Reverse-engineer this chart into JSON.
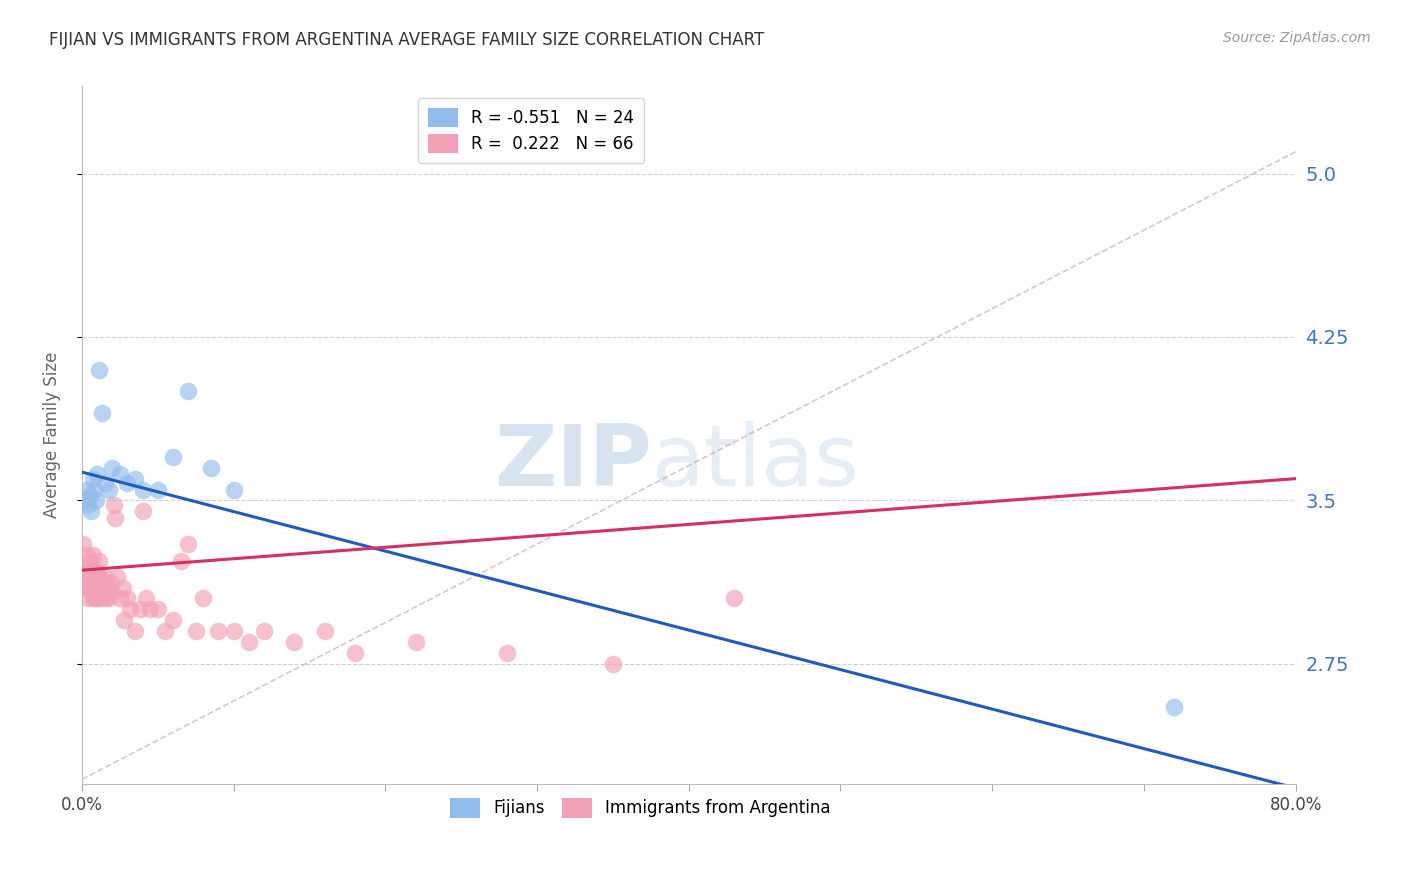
{
  "title": "FIJIAN VS IMMIGRANTS FROM ARGENTINA AVERAGE FAMILY SIZE CORRELATION CHART",
  "source": "Source: ZipAtlas.com",
  "ylabel": "Average Family Size",
  "xlim": [
    0.0,
    0.8
  ],
  "ylim": [
    2.2,
    5.4
  ],
  "yticks": [
    2.75,
    3.5,
    4.25,
    5.0
  ],
  "xticks": [
    0.0,
    0.1,
    0.2,
    0.3,
    0.4,
    0.5,
    0.6,
    0.7,
    0.8
  ],
  "xtick_labels": [
    "0.0%",
    "",
    "",
    "",
    "",
    "",
    "",
    "",
    "80.0%"
  ],
  "fijian_color": "#92bcec",
  "argentina_color": "#f2a0b5",
  "fijian_line_color": "#1f5abf",
  "argentina_line_color": "#d43060",
  "right_axis_color": "#4472c4",
  "legend_label_fijian": "R = -0.551   N = 24",
  "legend_label_argentina": "R =  0.222   N = 66",
  "legend_labels_bottom": [
    "Fijians",
    "Immigrants from Argentina"
  ],
  "fijian_x": [
    0.002,
    0.003,
    0.004,
    0.005,
    0.006,
    0.007,
    0.008,
    0.009,
    0.01,
    0.011,
    0.013,
    0.015,
    0.018,
    0.02,
    0.025,
    0.03,
    0.035,
    0.04,
    0.05,
    0.06,
    0.07,
    0.085,
    0.1,
    0.72
  ],
  "fijian_y": [
    3.5,
    3.55,
    3.48,
    3.52,
    3.45,
    3.6,
    3.55,
    3.5,
    3.62,
    4.1,
    3.9,
    3.58,
    3.55,
    3.65,
    3.62,
    3.58,
    3.6,
    3.55,
    3.55,
    3.7,
    4.0,
    3.65,
    3.55,
    2.55
  ],
  "argentina_x": [
    0.001,
    0.002,
    0.002,
    0.003,
    0.003,
    0.004,
    0.004,
    0.005,
    0.005,
    0.005,
    0.006,
    0.006,
    0.007,
    0.007,
    0.007,
    0.008,
    0.008,
    0.009,
    0.009,
    0.01,
    0.01,
    0.01,
    0.011,
    0.012,
    0.012,
    0.013,
    0.013,
    0.014,
    0.015,
    0.015,
    0.016,
    0.017,
    0.018,
    0.019,
    0.02,
    0.021,
    0.022,
    0.023,
    0.025,
    0.027,
    0.028,
    0.03,
    0.032,
    0.035,
    0.038,
    0.04,
    0.042,
    0.045,
    0.05,
    0.055,
    0.06,
    0.065,
    0.07,
    0.075,
    0.08,
    0.09,
    0.1,
    0.11,
    0.12,
    0.14,
    0.16,
    0.18,
    0.22,
    0.28,
    0.35,
    0.43
  ],
  "argentina_y": [
    3.3,
    3.2,
    3.15,
    3.25,
    3.1,
    3.18,
    3.05,
    3.22,
    3.1,
    3.15,
    3.2,
    3.08,
    3.15,
    3.05,
    3.25,
    3.12,
    3.08,
    3.18,
    3.05,
    3.15,
    3.1,
    3.05,
    3.22,
    3.08,
    3.15,
    3.12,
    3.05,
    3.1,
    3.15,
    3.08,
    3.05,
    3.1,
    3.05,
    3.12,
    3.08,
    3.48,
    3.42,
    3.15,
    3.05,
    3.1,
    2.95,
    3.05,
    3.0,
    2.9,
    3.0,
    3.45,
    3.05,
    3.0,
    3.0,
    2.9,
    2.95,
    3.22,
    3.3,
    2.9,
    3.05,
    2.9,
    2.9,
    2.85,
    2.9,
    2.85,
    2.9,
    2.8,
    2.85,
    2.8,
    2.75,
    3.05
  ],
  "fijian_line_x0": 0.0,
  "fijian_line_y0": 3.63,
  "fijian_line_x1": 0.8,
  "fijian_line_y1": 2.18,
  "argentina_line_x0": 0.0,
  "argentina_line_y0": 3.18,
  "argentina_line_x1": 0.8,
  "argentina_line_y1": 3.6,
  "diag_line_x0": 0.0,
  "diag_line_y0": 2.22,
  "diag_line_x1": 0.8,
  "diag_line_y1": 5.1,
  "watermark_zip": "ZIP",
  "watermark_atlas": "atlas"
}
